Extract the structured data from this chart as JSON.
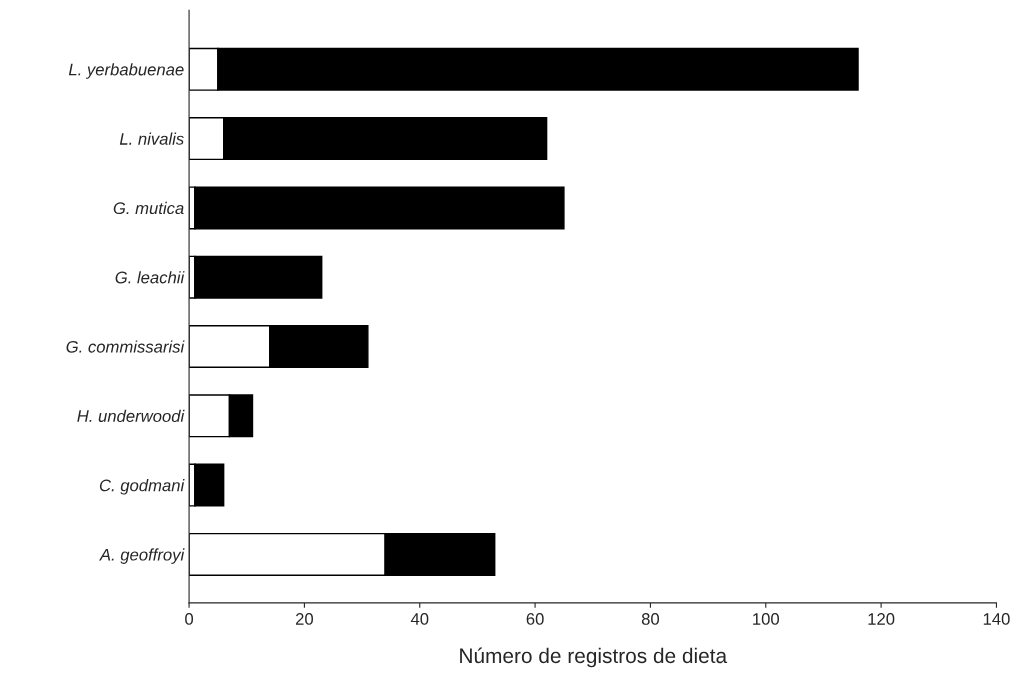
{
  "chart_data": {
    "type": "bar",
    "orientation": "horizontal",
    "stacked": true,
    "xlabel": "Número de registros de dieta",
    "categories": [
      "L. yerbabuenae",
      "L. nivalis",
      "G. mutica",
      "G. leachii",
      "G. commissarisi",
      "H. underwoodi",
      "C. godmani",
      "A. geoffroyi"
    ],
    "series": [
      {
        "color": "#ffffff",
        "values": [
          5,
          6,
          1,
          1,
          14,
          7,
          1,
          34
        ]
      },
      {
        "color": "#000000",
        "values": [
          111,
          56,
          64,
          22,
          17,
          4,
          5,
          19
        ]
      }
    ],
    "xlim": [
      0,
      140
    ],
    "xticks": [
      0,
      20,
      40,
      60,
      80,
      100,
      120,
      140
    ],
    "grid": false,
    "legend": false
  }
}
